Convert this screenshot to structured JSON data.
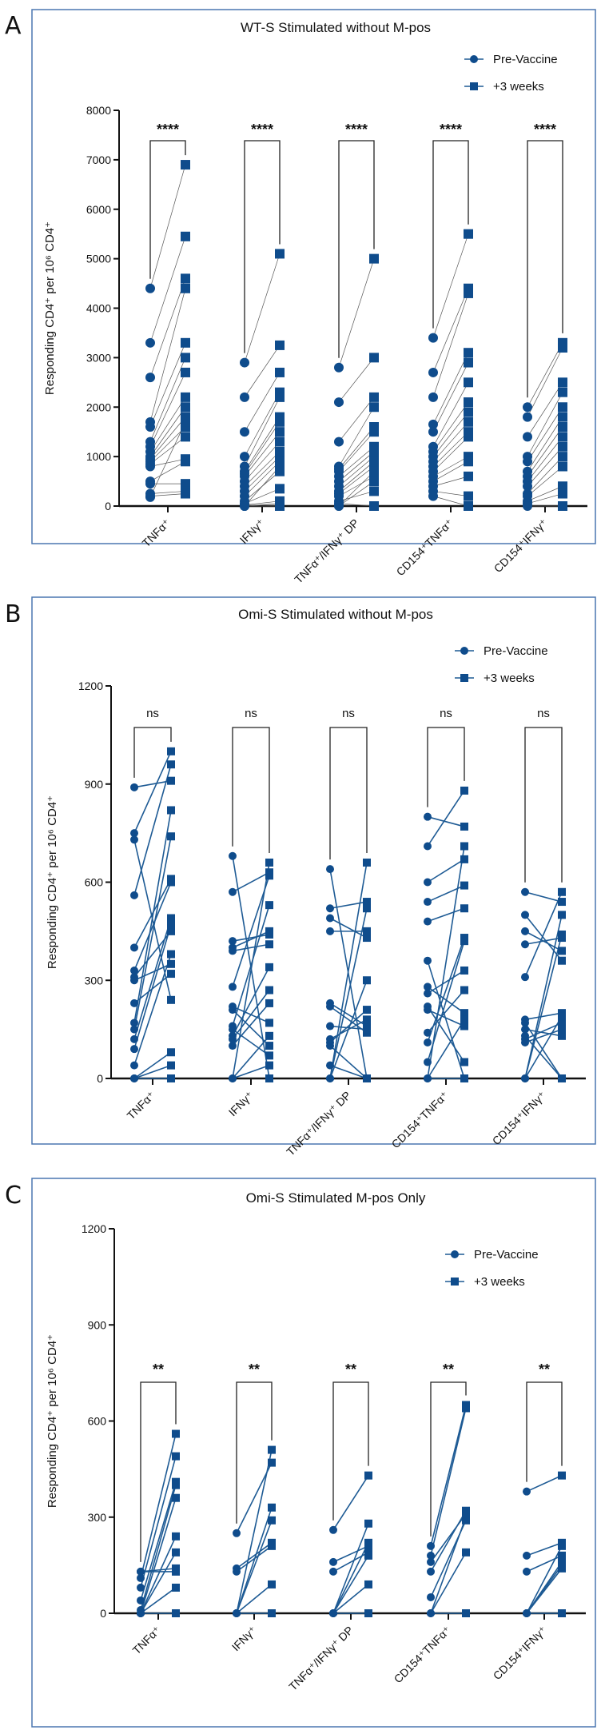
{
  "chart_data": [
    {
      "panel": "A",
      "type": "scatter",
      "subtype": "paired before-after",
      "title": "WT-S Stimulated without M-pos",
      "ylabel": "Responding CD4⁺ per 10⁶ CD4⁺",
      "ylim": [
        0,
        8000
      ],
      "yticks": [
        "0",
        "1000",
        "2000",
        "3000",
        "4000",
        "5000",
        "6000",
        "7000",
        "8000"
      ],
      "ytick_values": [
        0,
        1000,
        2000,
        3000,
        4000,
        5000,
        6000,
        7000,
        8000
      ],
      "legend": [
        "Pre-Vaccine",
        "+3 weeks"
      ],
      "legend_position": "top-right",
      "groups": [
        {
          "label": "TNFα⁺",
          "sig": "****",
          "pre": [
            4400,
            3300,
            2600,
            1700,
            1600,
            1300,
            1200,
            1100,
            1000,
            950,
            900,
            850,
            800,
            500,
            450,
            250,
            200,
            180
          ],
          "post": [
            6900,
            5450,
            4600,
            4400,
            3300,
            3000,
            2700,
            2200,
            2000,
            1800,
            1600,
            1400,
            950,
            900,
            450,
            300,
            250,
            1700
          ]
        },
        {
          "label": "IFNγ⁺",
          "sig": "****",
          "pre": [
            2900,
            2200,
            1500,
            1000,
            800,
            700,
            650,
            600,
            500,
            400,
            300,
            200,
            100,
            50,
            20,
            0,
            0,
            0
          ],
          "post": [
            5100,
            3250,
            2700,
            2300,
            2200,
            1800,
            1700,
            1500,
            1300,
            1100,
            1000,
            900,
            700,
            350,
            100,
            50,
            0,
            800
          ]
        },
        {
          "label": "TNFα⁺/IFNγ⁺ DP",
          "sig": "****",
          "pre": [
            2800,
            2100,
            1300,
            800,
            750,
            700,
            600,
            500,
            400,
            300,
            250,
            200,
            100,
            50,
            0,
            0
          ],
          "post": [
            5000,
            3000,
            2200,
            2000,
            1600,
            1500,
            1200,
            1100,
            1000,
            900,
            800,
            600,
            300,
            0,
            700,
            500
          ]
        },
        {
          "label": "CD154⁺TNFα⁺",
          "sig": "****",
          "pre": [
            3400,
            2700,
            2200,
            1650,
            1500,
            1200,
            1100,
            1000,
            900,
            800,
            700,
            600,
            500,
            400,
            300,
            200
          ],
          "post": [
            5500,
            4400,
            4300,
            3100,
            2900,
            2500,
            2100,
            1900,
            1700,
            1500,
            1400,
            1000,
            900,
            600,
            200,
            0
          ]
        },
        {
          "label": "CD154⁺IFNγ⁺",
          "sig": "****",
          "pre": [
            2000,
            1800,
            1400,
            1000,
            900,
            700,
            600,
            500,
            400,
            250,
            200,
            100,
            50,
            0
          ],
          "post": [
            3300,
            3200,
            2500,
            2300,
            2000,
            1800,
            1600,
            1400,
            1200,
            1000,
            800,
            400,
            250,
            0
          ]
        }
      ]
    },
    {
      "panel": "B",
      "type": "scatter",
      "subtype": "paired before-after",
      "title": "Omi-S Stimulated without M-pos",
      "ylabel": "Responding CD4⁺ per 10⁶ CD4⁺",
      "ylim": [
        0,
        1200
      ],
      "yticks": [
        "0",
        "300",
        "600",
        "900",
        "1200"
      ],
      "ytick_values": [
        0,
        300,
        600,
        900,
        1200
      ],
      "legend": [
        "Pre-Vaccine",
        "+3 weeks"
      ],
      "legend_position": "top-right",
      "groups": [
        {
          "label": "TNFα⁺",
          "sig": "ns",
          "pre": [
            890,
            750,
            730,
            560,
            400,
            330,
            310,
            300,
            230,
            170,
            150,
            120,
            90,
            40,
            0,
            0,
            0
          ],
          "post": [
            910,
            1000,
            240,
            960,
            610,
            600,
            450,
            350,
            320,
            820,
            740,
            490,
            470,
            380,
            80,
            40,
            0
          ]
        },
        {
          "label": "IFNγ⁺",
          "sig": "ns",
          "pre": [
            680,
            570,
            420,
            400,
            390,
            280,
            220,
            210,
            160,
            150,
            130,
            120,
            100,
            0,
            0,
            0
          ],
          "post": [
            0,
            630,
            440,
            450,
            410,
            620,
            170,
            100,
            530,
            70,
            340,
            270,
            230,
            660,
            130,
            40
          ]
        },
        {
          "label": "TNFα⁺/IFNγ⁺ DP",
          "sig": "ns",
          "pre": [
            640,
            520,
            490,
            450,
            230,
            220,
            160,
            120,
            110,
            100,
            40,
            0,
            0,
            0
          ],
          "post": [
            0,
            540,
            430,
            450,
            160,
            140,
            150,
            180,
            210,
            0,
            0,
            660,
            520,
            300
          ]
        },
        {
          "label": "CD154⁺TNFα⁺",
          "sig": "ns",
          "pre": [
            800,
            710,
            600,
            540,
            480,
            360,
            280,
            260,
            220,
            210,
            140,
            110,
            50,
            0,
            0,
            0
          ],
          "post": [
            770,
            880,
            670,
            590,
            520,
            0,
            200,
            330,
            50,
            160,
            270,
            430,
            420,
            710,
            180,
            0
          ]
        },
        {
          "label": "CD154⁺IFNγ⁺",
          "sig": "ns",
          "pre": [
            570,
            500,
            450,
            410,
            310,
            180,
            170,
            150,
            130,
            120,
            110,
            0,
            0,
            0
          ],
          "post": [
            540,
            360,
            390,
            430,
            570,
            200,
            0,
            130,
            0,
            170,
            150,
            500,
            440,
            190
          ]
        }
      ]
    },
    {
      "panel": "C",
      "type": "scatter",
      "subtype": "paired before-after",
      "title": "Omi-S Stimulated M-pos Only",
      "ylabel": "Responding CD4⁺ per 10⁶ CD4⁺",
      "ylim": [
        0,
        1200
      ],
      "yticks": [
        "0",
        "300",
        "600",
        "900",
        "1200"
      ],
      "ytick_values": [
        0,
        300,
        600,
        900,
        1200
      ],
      "legend": [
        "Pre-Vaccine",
        "+3 weeks"
      ],
      "legend_position": "top-right",
      "groups": [
        {
          "label": "TNFα⁺",
          "sig": "**",
          "pre": [
            130,
            130,
            110,
            80,
            40,
            10,
            0,
            0,
            0,
            0,
            0
          ],
          "post": [
            140,
            130,
            560,
            490,
            410,
            400,
            360,
            240,
            190,
            80,
            0
          ]
        },
        {
          "label": "IFNγ⁺",
          "sig": "**",
          "pre": [
            250,
            140,
            130,
            0,
            0,
            0,
            0,
            0
          ],
          "post": [
            470,
            220,
            210,
            510,
            330,
            290,
            90,
            0
          ]
        },
        {
          "label": "TNFα⁺/IFNγ⁺ DP",
          "sig": "**",
          "pre": [
            260,
            160,
            130,
            0,
            0,
            0,
            0,
            0
          ],
          "post": [
            430,
            210,
            190,
            280,
            220,
            180,
            90,
            0
          ]
        },
        {
          "label": "CD154⁺TNFα⁺",
          "sig": "**",
          "pre": [
            210,
            180,
            160,
            130,
            50,
            0,
            0,
            0
          ],
          "post": [
            650,
            640,
            310,
            320,
            290,
            190,
            300,
            0
          ]
        },
        {
          "label": "CD154⁺IFNγ⁺",
          "sig": "**",
          "pre": [
            380,
            180,
            130,
            0,
            0,
            0,
            0,
            0
          ],
          "post": [
            430,
            220,
            180,
            210,
            160,
            140,
            150,
            0
          ]
        }
      ]
    }
  ],
  "colors": {
    "marker": "#0f4c8c",
    "lineA": "#555555",
    "lineBC": "#1d5a94",
    "frame": "#4a76b0"
  }
}
